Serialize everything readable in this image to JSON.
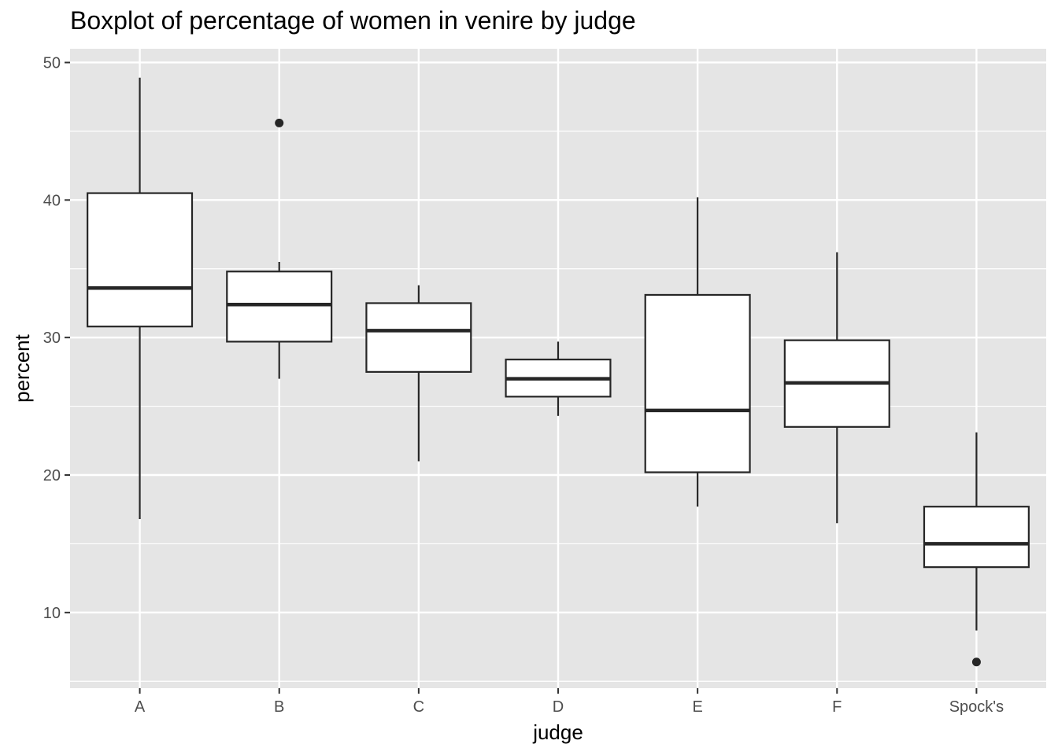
{
  "chart_data": {
    "type": "boxplot",
    "title": "Boxplot of percentage of women in venire by judge",
    "xlabel": "judge",
    "ylabel": "percent",
    "ylim": [
      4.5,
      51
    ],
    "yticks": [
      10,
      20,
      30,
      40,
      50
    ],
    "grid": true,
    "categories": [
      "A",
      "B",
      "C",
      "D",
      "E",
      "F",
      "Spock's"
    ],
    "boxes": [
      {
        "category": "A",
        "whisker_low": 16.8,
        "q1": 30.8,
        "median": 33.6,
        "q3": 40.5,
        "whisker_high": 48.9,
        "outliers": []
      },
      {
        "category": "B",
        "whisker_low": 27.0,
        "q1": 29.7,
        "median": 32.4,
        "q3": 34.8,
        "whisker_high": 35.5,
        "outliers": [
          45.6
        ]
      },
      {
        "category": "C",
        "whisker_low": 21.0,
        "q1": 27.5,
        "median": 30.5,
        "q3": 32.5,
        "whisker_high": 33.8,
        "outliers": []
      },
      {
        "category": "D",
        "whisker_low": 24.3,
        "q1": 25.7,
        "median": 27.0,
        "q3": 28.4,
        "whisker_high": 29.7,
        "outliers": []
      },
      {
        "category": "E",
        "whisker_low": 17.7,
        "q1": 20.2,
        "median": 24.7,
        "q3": 33.1,
        "whisker_high": 40.2,
        "outliers": []
      },
      {
        "category": "F",
        "whisker_low": 16.5,
        "q1": 23.5,
        "median": 26.7,
        "q3": 29.8,
        "whisker_high": 36.2,
        "outliers": []
      },
      {
        "category": "Spock's",
        "whisker_low": 8.7,
        "q1": 13.3,
        "median": 15.0,
        "q3": 17.7,
        "whisker_high": 23.1,
        "outliers": [
          6.4
        ]
      }
    ],
    "colors": {
      "panel_background": "#e5e5e5",
      "grid_major": "#ffffff",
      "box_fill": "#ffffff",
      "box_stroke": "#262626",
      "tick_text": "#4d4d4d"
    }
  }
}
